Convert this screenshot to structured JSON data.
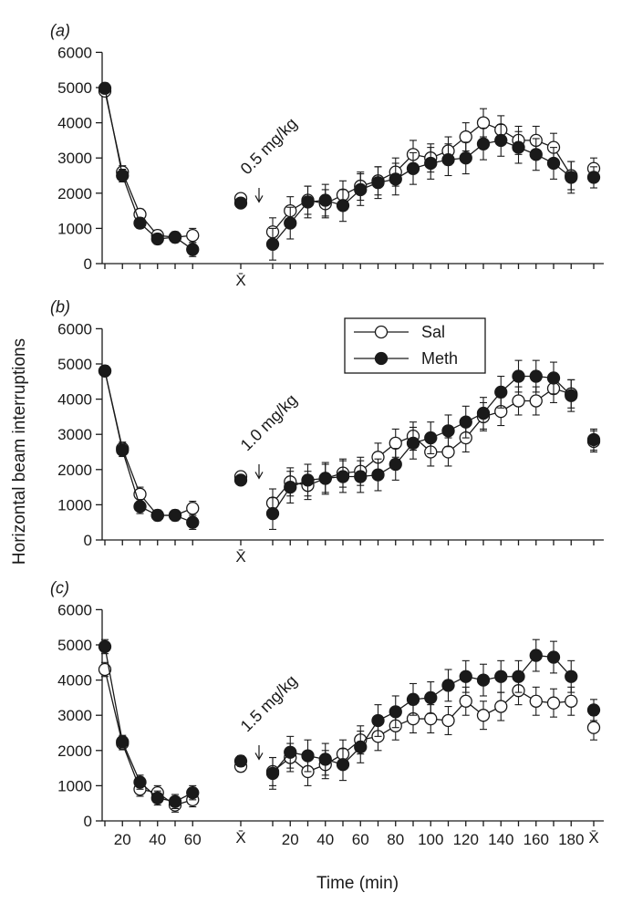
{
  "chart_data": {
    "type": "line",
    "ylabel": "Horizontal beam interruptions",
    "xlabel": "Time (min)",
    "x_ticks_left": [
      20,
      40,
      60
    ],
    "x_ticks_right": [
      20,
      40,
      60,
      80,
      100,
      120,
      140,
      160,
      180
    ],
    "mean_label": "X̄",
    "ylim": [
      0,
      6000
    ],
    "y_ticks": [
      0,
      1000,
      2000,
      3000,
      4000,
      5000,
      6000
    ],
    "legend": {
      "position": "top-right of panel (b)",
      "entries": [
        "Sal",
        "Meth"
      ]
    },
    "panels": [
      {
        "label": "(a)",
        "annotation": "0.5 mg/kg",
        "series": [
          {
            "name": "Sal",
            "marker": "open-circle",
            "habituation": {
              "x": [
                10,
                20,
                30,
                40,
                50,
                60
              ],
              "y": [
                4900,
                2600,
                1400,
                800,
                750,
                800
              ],
              "err": [
                150,
                180,
                150,
                150,
                150,
                200
              ]
            },
            "mean": {
              "y": 1850,
              "err": 100
            },
            "post": {
              "x": [
                10,
                20,
                30,
                40,
                50,
                60,
                70,
                80,
                90,
                100,
                110,
                120,
                130,
                140,
                150,
                160,
                170,
                180
              ],
              "y": [
                900,
                1500,
                1800,
                1700,
                1950,
                2200,
                2350,
                2600,
                3100,
                3000,
                3200,
                3600,
                4000,
                3800,
                3500,
                3500,
                3300,
                2500
              ],
              "err": [
                400,
                400,
                400,
                400,
                400,
                400,
                400,
                400,
                400,
                400,
                400,
                400,
                400,
                400,
                400,
                400,
                400,
                400
              ]
            },
            "overall_mean": {
              "y": 2700,
              "err": 300
            }
          },
          {
            "name": "Meth",
            "marker": "filled-circle",
            "habituation": {
              "x": [
                10,
                20,
                30,
                40,
                50,
                60
              ],
              "y": [
                4980,
                2500,
                1150,
                700,
                750,
                400
              ],
              "err": [
                150,
                180,
                150,
                150,
                150,
                200
              ]
            },
            "mean": {
              "y": 1720,
              "err": 100
            },
            "post": {
              "x": [
                10,
                20,
                30,
                40,
                50,
                60,
                70,
                80,
                90,
                100,
                110,
                120,
                130,
                140,
                150,
                160,
                170,
                180
              ],
              "y": [
                550,
                1150,
                1750,
                1800,
                1650,
                2100,
                2300,
                2400,
                2700,
                2850,
                2950,
                3000,
                3400,
                3500,
                3300,
                3100,
                2850,
                2450
              ],
              "err": [
                450,
                450,
                450,
                450,
                450,
                450,
                450,
                450,
                450,
                450,
                450,
                450,
                450,
                450,
                450,
                450,
                450,
                450
              ]
            },
            "overall_mean": {
              "y": 2450,
              "err": 300
            }
          }
        ]
      },
      {
        "label": "(b)",
        "annotation": "1.0 mg/kg",
        "series": [
          {
            "name": "Sal",
            "marker": "open-circle",
            "habituation": {
              "x": [
                10,
                20,
                30,
                40,
                50,
                60
              ],
              "y": [
                4800,
                2600,
                1300,
                700,
                700,
                900
              ],
              "err": [
                150,
                180,
                200,
                150,
                150,
                200
              ]
            },
            "mean": {
              "y": 1800,
              "err": 120
            },
            "post": {
              "x": [
                10,
                20,
                30,
                40,
                50,
                60,
                70,
                80,
                90,
                100,
                110,
                120,
                130,
                140,
                150,
                160,
                170,
                180
              ],
              "y": [
                1050,
                1650,
                1550,
                1750,
                1900,
                1950,
                2350,
                2750,
                2950,
                2500,
                2500,
                2900,
                3500,
                3650,
                3950,
                3950,
                4300,
                4150
              ],
              "err": [
                400,
                400,
                400,
                400,
                400,
                400,
                400,
                400,
                400,
                400,
                400,
                400,
                400,
                400,
                400,
                400,
                400,
                400
              ]
            },
            "overall_mean": {
              "y": 2800,
              "err": 300
            }
          },
          {
            "name": "Meth",
            "marker": "filled-circle",
            "habituation": {
              "x": [
                10,
                20,
                30,
                40,
                50,
                60
              ],
              "y": [
                4800,
                2550,
                950,
                700,
                700,
                500
              ],
              "err": [
                150,
                180,
                200,
                150,
                150,
                200
              ]
            },
            "mean": {
              "y": 1700,
              "err": 120
            },
            "post": {
              "x": [
                10,
                20,
                30,
                40,
                50,
                60,
                70,
                80,
                90,
                100,
                110,
                120,
                130,
                140,
                150,
                160,
                170,
                180
              ],
              "y": [
                750,
                1500,
                1700,
                1750,
                1800,
                1800,
                1850,
                2150,
                2750,
                2900,
                3100,
                3350,
                3600,
                4200,
                4650,
                4650,
                4600,
                4100
              ],
              "err": [
                450,
                450,
                450,
                450,
                450,
                450,
                450,
                450,
                450,
                450,
                450,
                450,
                450,
                450,
                450,
                450,
                450,
                450
              ]
            },
            "overall_mean": {
              "y": 2850,
              "err": 300
            }
          }
        ]
      },
      {
        "label": "(c)",
        "annotation": "1.5 mg/kg",
        "series": [
          {
            "name": "Sal",
            "marker": "open-circle",
            "habituation": {
              "x": [
                10,
                20,
                30,
                40,
                50,
                60
              ],
              "y": [
                4300,
                2200,
                900,
                800,
                450,
                600
              ],
              "err": [
                200,
                180,
                200,
                200,
                200,
                200
              ]
            },
            "mean": {
              "y": 1550,
              "err": 150
            },
            "post": {
              "x": [
                10,
                20,
                30,
                40,
                50,
                60,
                70,
                80,
                90,
                100,
                110,
                120,
                130,
                140,
                150,
                160,
                170,
                180
              ],
              "y": [
                1400,
                1800,
                1400,
                1600,
                1900,
                2300,
                2400,
                2700,
                2900,
                2900,
                2850,
                3400,
                3000,
                3250,
                3700,
                3400,
                3350,
                3400
              ],
              "err": [
                400,
                400,
                400,
                400,
                400,
                400,
                400,
                400,
                400,
                400,
                400,
                400,
                400,
                400,
                400,
                400,
                400,
                400
              ]
            },
            "overall_mean": {
              "y": 2650,
              "err": 350
            }
          },
          {
            "name": "Meth",
            "marker": "filled-circle",
            "habituation": {
              "x": [
                10,
                20,
                30,
                40,
                50,
                60
              ],
              "y": [
                4950,
                2250,
                1100,
                650,
                550,
                800
              ],
              "err": [
                200,
                180,
                200,
                200,
                200,
                200
              ]
            },
            "mean": {
              "y": 1700,
              "err": 150
            },
            "post": {
              "x": [
                10,
                20,
                30,
                40,
                50,
                60,
                70,
                80,
                90,
                100,
                110,
                120,
                130,
                140,
                150,
                160,
                170,
                180
              ],
              "y": [
                1350,
                1950,
                1850,
                1750,
                1600,
                2100,
                2850,
                3100,
                3450,
                3500,
                3850,
                4100,
                4000,
                4100,
                4100,
                4700,
                4650,
                4100
              ],
              "err": [
                450,
                450,
                450,
                450,
                450,
                450,
                450,
                450,
                450,
                450,
                450,
                450,
                450,
                450,
                450,
                450,
                450,
                450
              ]
            },
            "overall_mean": {
              "y": 3150,
              "err": 300
            }
          }
        ]
      }
    ]
  }
}
